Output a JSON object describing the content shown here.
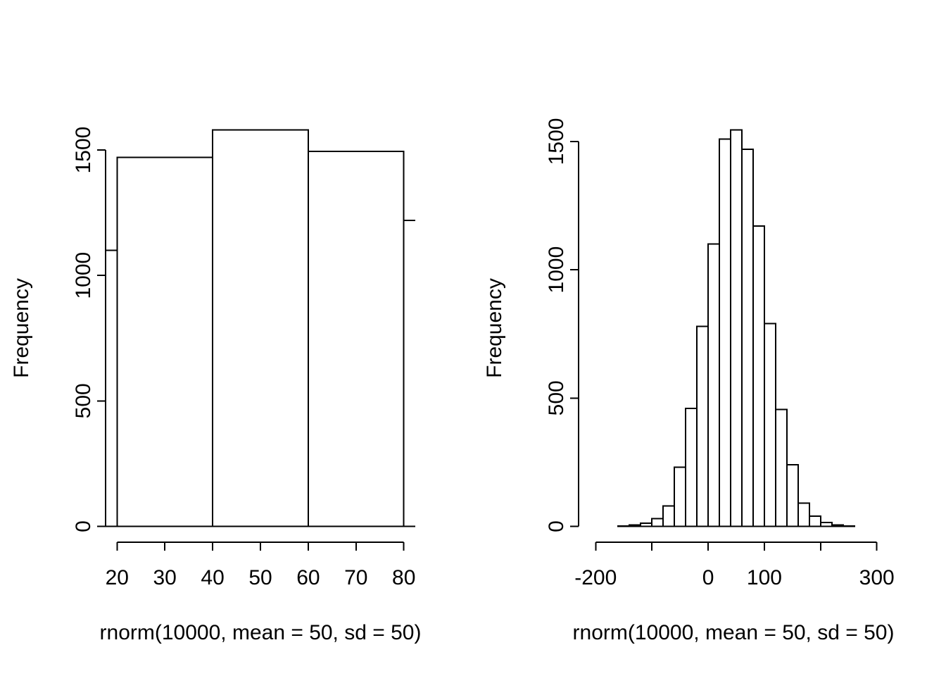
{
  "colors": {
    "background": "#ffffff",
    "foreground": "#000000"
  },
  "chart_data": [
    {
      "type": "bar",
      "subtype": "histogram",
      "title": "",
      "xlabel": "rnorm(10000, mean = 50, sd = 50)",
      "ylabel": "Frequency",
      "bins": {
        "start": 0,
        "width": 20,
        "values": [
          1100,
          1470,
          1580,
          1495,
          1220
        ]
      },
      "xlim": [
        20,
        80
      ],
      "ylim": [
        0,
        1580
      ],
      "x_ticks": [
        {
          "value": 20,
          "label": "20"
        },
        {
          "value": 30,
          "label": "30"
        },
        {
          "value": 40,
          "label": "40"
        },
        {
          "value": 50,
          "label": "50"
        },
        {
          "value": 60,
          "label": "60"
        },
        {
          "value": 70,
          "label": "70"
        },
        {
          "value": 80,
          "label": "80"
        }
      ],
      "y_ticks": [
        {
          "value": 0,
          "label": "0"
        },
        {
          "value": 500,
          "label": "500"
        },
        {
          "value": 1000,
          "label": "1000"
        },
        {
          "value": 1500,
          "label": "1500"
        }
      ],
      "grid": "off",
      "legend": "none",
      "bar_fill": "#ffffff",
      "bar_stroke": "#000000"
    },
    {
      "type": "bar",
      "subtype": "histogram",
      "title": "",
      "xlabel": "rnorm(10000, mean = 50, sd = 50)",
      "ylabel": "Frequency",
      "bins": {
        "start": -160,
        "width": 20,
        "values": [
          2,
          5,
          12,
          30,
          80,
          230,
          460,
          780,
          1100,
          1510,
          1545,
          1470,
          1170,
          790,
          455,
          240,
          90,
          40,
          15,
          5,
          2
        ]
      },
      "xlim": [
        -210,
        300
      ],
      "ylim": [
        0,
        1545
      ],
      "x_ticks": [
        {
          "value": -200,
          "label": "-200"
        },
        {
          "value": -100,
          "label": ""
        },
        {
          "value": 0,
          "label": "0"
        },
        {
          "value": 100,
          "label": "100"
        },
        {
          "value": 200,
          "label": ""
        },
        {
          "value": 300,
          "label": "300"
        }
      ],
      "y_ticks": [
        {
          "value": 0,
          "label": "0"
        },
        {
          "value": 500,
          "label": "500"
        },
        {
          "value": 1000,
          "label": "1000"
        },
        {
          "value": 1500,
          "label": "1500"
        }
      ],
      "grid": "off",
      "legend": "none",
      "bar_fill": "#ffffff",
      "bar_stroke": "#000000"
    }
  ]
}
